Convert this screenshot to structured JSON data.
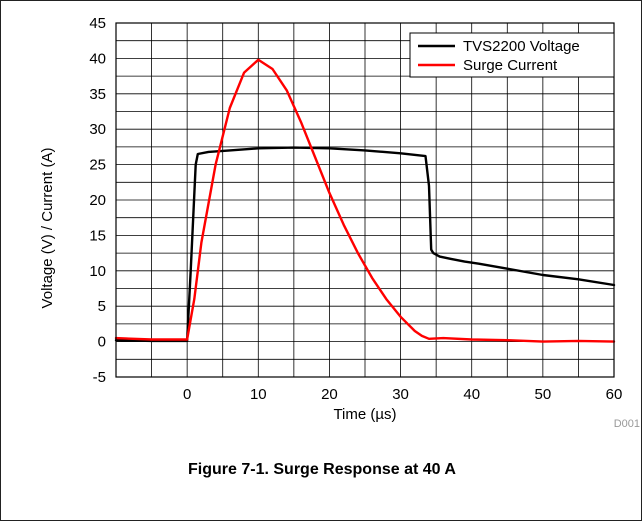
{
  "figure_id": "D001",
  "caption": "Figure 7-1. Surge Response at 40 A",
  "chart_data": {
    "type": "line",
    "xlabel": "Time (µs)",
    "ylabel": "Voltage (V) / Current (A)",
    "xlim": [
      -10,
      60
    ],
    "ylim": [
      -5,
      45
    ],
    "xticks": [
      0,
      10,
      20,
      30,
      40,
      50,
      60
    ],
    "yticks": [
      -5,
      0,
      5,
      10,
      15,
      20,
      25,
      30,
      35,
      40,
      45
    ],
    "grid": true,
    "legend_position": "top-right",
    "series": [
      {
        "name": "TVS2200 Voltage",
        "color": "#000000",
        "x": [
          -10,
          -5,
          0,
          0.5,
          1.2,
          1.5,
          3,
          6,
          10,
          15,
          20,
          25,
          30,
          33.5,
          34,
          34.3,
          34.6,
          35.5,
          37,
          39,
          41,
          45,
          50,
          55,
          60
        ],
        "y": [
          0.2,
          0.1,
          0.1,
          10,
          25,
          26.5,
          26.8,
          27.0,
          27.3,
          27.4,
          27.3,
          27.0,
          26.6,
          26.2,
          22,
          13,
          12.5,
          12.0,
          11.7,
          11.3,
          11.0,
          10.3,
          9.4,
          8.8,
          8.0
        ]
      },
      {
        "name": "Surge Current",
        "color": "#ff0000",
        "x": [
          -10,
          -5,
          0,
          1,
          2,
          4,
          6,
          8,
          10,
          12,
          14,
          16,
          18,
          20,
          22,
          24,
          26,
          28,
          30,
          32,
          33,
          34,
          36,
          40,
          45,
          50,
          55,
          60
        ],
        "y": [
          0.5,
          0.3,
          0.3,
          6,
          14,
          25,
          33,
          38,
          39.8,
          38.5,
          35.5,
          31,
          26,
          21,
          16.5,
          12.5,
          9,
          6,
          3.5,
          1.5,
          0.8,
          0.4,
          0.5,
          0.3,
          0.2,
          0.0,
          0.1,
          0.0
        ]
      }
    ]
  }
}
